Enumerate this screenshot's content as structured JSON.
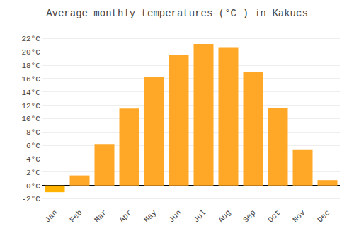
{
  "chart_data": {
    "type": "bar",
    "title": "Average monthly temperatures (°C ) in Kakucs",
    "categories": [
      "Jan",
      "Feb",
      "Mar",
      "Apr",
      "May",
      "Jun",
      "Jul",
      "Aug",
      "Sep",
      "Oct",
      "Nov",
      "Dec"
    ],
    "values": [
      -1.0,
      1.5,
      6.2,
      11.5,
      16.3,
      19.5,
      21.2,
      20.6,
      17.0,
      11.6,
      5.4,
      0.8
    ],
    "colors": [
      "#FFB300",
      "#FFA726",
      "#FFA726",
      "#FFA726",
      "#FFA726",
      "#FFA726",
      "#FFA726",
      "#FFA726",
      "#FFA726",
      "#FFA726",
      "#FFA726",
      "#FFA726"
    ],
    "ylim": [
      -3,
      23
    ],
    "yticks": [
      {
        "value": -2,
        "label": "-2°C"
      },
      {
        "value": 0,
        "label": "0°C"
      },
      {
        "value": 2,
        "label": "2°C"
      },
      {
        "value": 4,
        "label": "4°C"
      },
      {
        "value": 6,
        "label": "6°C"
      },
      {
        "value": 8,
        "label": "8°C"
      },
      {
        "value": 10,
        "label": "10°C"
      },
      {
        "value": 12,
        "label": "12°C"
      },
      {
        "value": 14,
        "label": "14°C"
      },
      {
        "value": 16,
        "label": "16°C"
      },
      {
        "value": 18,
        "label": "18°C"
      },
      {
        "value": 20,
        "label": "20°C"
      },
      {
        "value": 22,
        "label": "22°C"
      }
    ],
    "grid": true
  }
}
